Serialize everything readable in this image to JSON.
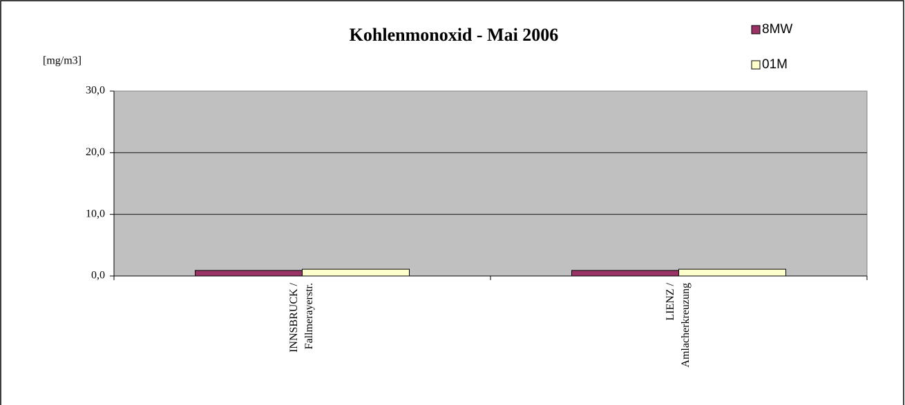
{
  "chart_data": {
    "type": "bar",
    "title": "Kohlenmonoxid - Mai 2006",
    "y_label": "[mg/m3]",
    "categories": [
      [
        "INNSBRUCK /",
        "Fallmerayerstr."
      ],
      [
        "LIENZ /",
        "Amlacherkreuzung"
      ]
    ],
    "series": [
      {
        "name": "8MW",
        "color": "#993366",
        "values": [
          0.9,
          0.9
        ]
      },
      {
        "name": "01M",
        "color": "#ffffcc",
        "values": [
          1.1,
          1.1
        ]
      }
    ],
    "ylim": [
      0,
      30
    ],
    "yticks": [
      {
        "value": 0,
        "label": "0,0"
      },
      {
        "value": 10,
        "label": "10,0"
      },
      {
        "value": 20,
        "label": "20,0"
      },
      {
        "value": 30,
        "label": "30,0"
      }
    ],
    "grid": true,
    "legend": "top-right",
    "plot_background": "#c0c0c0"
  }
}
